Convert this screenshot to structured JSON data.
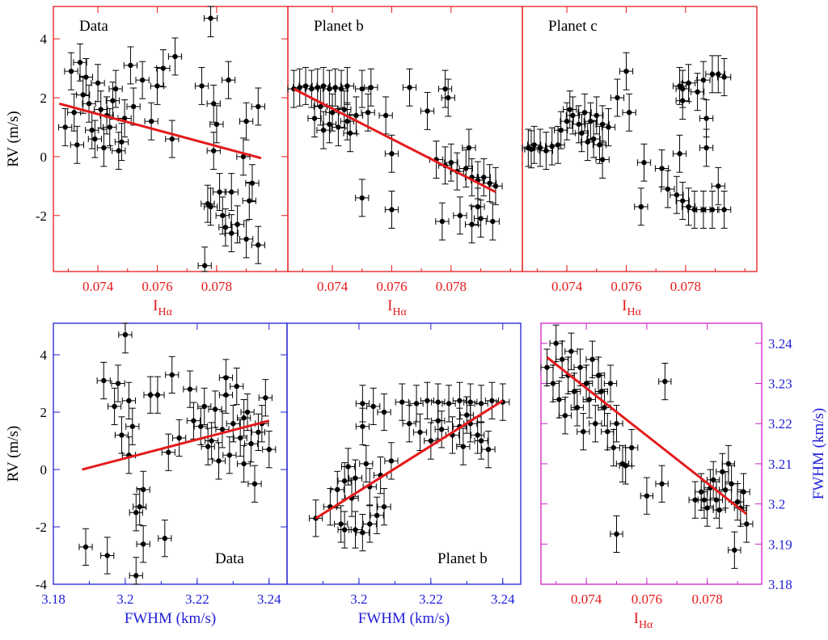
{
  "colors": {
    "red": "#e41a1c",
    "blue": "#1f1fd6",
    "magenta": "#cc22cc",
    "fit": "#e41a1c",
    "points": "#000000"
  },
  "chart_data": [
    {
      "id": "top-data",
      "type": "scatter",
      "panel_label": "Data",
      "frame_color": "red",
      "xlabel": "I",
      "xlabel_sub": "Hα",
      "xlabel_color": "red",
      "ylabel": "RV (m/s)",
      "xlim": [
        0.0725,
        0.0804
      ],
      "ylim": [
        -3.9,
        5.1
      ],
      "xticks": [
        "0.074",
        "0.076",
        "0.078"
      ],
      "yticks": [
        "-2",
        "0",
        "2",
        "4"
      ],
      "fit": [
        [
          0.0727,
          1.8
        ],
        [
          0.0795,
          -0.05
        ]
      ],
      "points": [
        [
          0.0732,
          1.5
        ],
        [
          0.0735,
          2.1
        ],
        [
          0.0738,
          0.9
        ],
        [
          0.0741,
          1.6
        ],
        [
          0.0733,
          0.4
        ],
        [
          0.0746,
          2.3
        ],
        [
          0.0749,
          1.3
        ],
        [
          0.0729,
          1.0
        ],
        [
          0.0736,
          2.7
        ],
        [
          0.0742,
          0.3
        ],
        [
          0.0745,
          1.9
        ],
        [
          0.0739,
          0.6
        ],
        [
          0.0734,
          3.2
        ],
        [
          0.0751,
          3.1
        ],
        [
          0.0744,
          1.0
        ],
        [
          0.0737,
          1.8
        ],
        [
          0.074,
          2.5
        ],
        [
          0.0748,
          0.5
        ],
        [
          0.0731,
          2.9
        ],
        [
          0.0743,
          1.4
        ],
        [
          0.0747,
          0.2
        ],
        [
          0.0752,
          1.7
        ],
        [
          0.0755,
          2.6
        ],
        [
          0.0758,
          1.2
        ],
        [
          0.0762,
          3.0
        ],
        [
          0.0766,
          3.4
        ],
        [
          0.076,
          2.4
        ],
        [
          0.0765,
          0.6
        ],
        [
          0.0775,
          2.4
        ],
        [
          0.0784,
          2.6
        ],
        [
          0.0778,
          4.7
        ],
        [
          0.0779,
          1.8
        ],
        [
          0.078,
          1.1
        ],
        [
          0.0779,
          0.2
        ],
        [
          0.0777,
          -1.6
        ],
        [
          0.0778,
          -1.7
        ],
        [
          0.0781,
          -1.2
        ],
        [
          0.0785,
          -1.2
        ],
        [
          0.0782,
          -2.0
        ],
        [
          0.0783,
          -2.4
        ],
        [
          0.0785,
          -2.6
        ],
        [
          0.0787,
          -2.3
        ],
        [
          0.079,
          -2.8
        ],
        [
          0.0792,
          -0.9
        ],
        [
          0.0794,
          -3.0
        ],
        [
          0.079,
          1.2
        ],
        [
          0.0776,
          -3.7
        ],
        [
          0.0789,
          0.0
        ],
        [
          0.0794,
          1.7
        ],
        [
          0.0791,
          -1.5
        ]
      ]
    },
    {
      "id": "top-planet-b",
      "type": "scatter",
      "panel_label": "Planet b",
      "frame_color": "red",
      "xlabel": "I",
      "xlabel_sub": "Hα",
      "xlabel_color": "red",
      "ylabel": "",
      "xlim": [
        0.0725,
        0.0804
      ],
      "ylim": [
        -3.9,
        5.1
      ],
      "xticks": [
        "0.074",
        "0.076",
        "0.078"
      ],
      "yticks": [],
      "fit": [
        [
          0.0727,
          2.3
        ],
        [
          0.0795,
          -1.2
        ]
      ],
      "points": [
        [
          0.0727,
          2.3
        ],
        [
          0.0729,
          2.35
        ],
        [
          0.0731,
          2.4
        ],
        [
          0.0733,
          2.3
        ],
        [
          0.0735,
          2.35
        ],
        [
          0.0737,
          2.4
        ],
        [
          0.0739,
          2.3
        ],
        [
          0.0741,
          2.35
        ],
        [
          0.0743,
          2.3
        ],
        [
          0.0745,
          2.4
        ],
        [
          0.075,
          2.3
        ],
        [
          0.0753,
          2.35
        ],
        [
          0.0766,
          2.35
        ],
        [
          0.0778,
          2.3
        ],
        [
          0.0779,
          2.0
        ],
        [
          0.0734,
          1.3
        ],
        [
          0.0737,
          0.9
        ],
        [
          0.074,
          1.5
        ],
        [
          0.0742,
          1.0
        ],
        [
          0.0744,
          1.6
        ],
        [
          0.0746,
          0.8
        ],
        [
          0.0748,
          1.4
        ],
        [
          0.0736,
          1.7
        ],
        [
          0.0739,
          1.1
        ],
        [
          0.0745,
          1.2
        ],
        [
          0.0752,
          1.5
        ],
        [
          0.0758,
          1.4
        ],
        [
          0.0772,
          1.55
        ],
        [
          0.076,
          0.1
        ],
        [
          0.075,
          -1.4
        ],
        [
          0.076,
          -1.8
        ],
        [
          0.0775,
          -0.1
        ],
        [
          0.0778,
          -0.3
        ],
        [
          0.078,
          -0.2
        ],
        [
          0.0782,
          -0.5
        ],
        [
          0.0785,
          -0.4
        ],
        [
          0.0787,
          -0.7
        ],
        [
          0.0789,
          -0.8
        ],
        [
          0.0791,
          -0.7
        ],
        [
          0.0793,
          -0.9
        ],
        [
          0.0786,
          0.3
        ],
        [
          0.0789,
          -1.7
        ],
        [
          0.0777,
          -2.2
        ],
        [
          0.0783,
          -2.0
        ],
        [
          0.0787,
          -2.3
        ],
        [
          0.079,
          -2.1
        ],
        [
          0.0794,
          -2.2
        ],
        [
          0.0795,
          -1.0
        ]
      ]
    },
    {
      "id": "top-planet-c",
      "type": "scatter",
      "panel_label": "Planet c",
      "frame_color": "red",
      "xlabel": "I",
      "xlabel_sub": "Hα",
      "xlabel_color": "red",
      "ylabel": "",
      "xlim": [
        0.0725,
        0.0804
      ],
      "ylim": [
        -3.9,
        5.1
      ],
      "xticks": [
        "0.074",
        "0.076",
        "0.078"
      ],
      "yticks": [],
      "fit": null,
      "points": [
        [
          0.0727,
          0.3
        ],
        [
          0.0729,
          0.4
        ],
        [
          0.0731,
          0.3
        ],
        [
          0.0733,
          0.2
        ],
        [
          0.0735,
          0.35
        ],
        [
          0.0728,
          0.25
        ],
        [
          0.0737,
          0.4
        ],
        [
          0.074,
          1.2
        ],
        [
          0.0742,
          1.4
        ],
        [
          0.0744,
          1.1
        ],
        [
          0.0746,
          1.5
        ],
        [
          0.0748,
          1.2
        ],
        [
          0.0738,
          0.9
        ],
        [
          0.0741,
          1.6
        ],
        [
          0.0745,
          0.8
        ],
        [
          0.075,
          1.4
        ],
        [
          0.0752,
          1.1
        ],
        [
          0.0754,
          1.0
        ],
        [
          0.0747,
          0.5
        ],
        [
          0.0749,
          0.6
        ],
        [
          0.0751,
          0.4
        ],
        [
          0.0757,
          2.0
        ],
        [
          0.076,
          2.9
        ],
        [
          0.0761,
          1.5
        ],
        [
          0.0752,
          -0.1
        ],
        [
          0.0766,
          -0.2
        ],
        [
          0.0772,
          -0.4
        ],
        [
          0.0774,
          -1.1
        ],
        [
          0.0777,
          -1.3
        ],
        [
          0.0779,
          -1.5
        ],
        [
          0.0781,
          -1.7
        ],
        [
          0.0783,
          -1.8
        ],
        [
          0.0786,
          -1.8
        ],
        [
          0.0789,
          -1.8
        ],
        [
          0.0793,
          -1.8
        ],
        [
          0.0791,
          -1.0
        ],
        [
          0.0765,
          -1.7
        ],
        [
          0.0778,
          0.1
        ],
        [
          0.0787,
          0.3
        ],
        [
          0.0778,
          2.4
        ],
        [
          0.0779,
          2.3
        ],
        [
          0.0781,
          2.5
        ],
        [
          0.0784,
          2.2
        ],
        [
          0.0786,
          2.6
        ],
        [
          0.0789,
          2.8
        ],
        [
          0.0791,
          2.8
        ],
        [
          0.0793,
          2.7
        ],
        [
          0.0779,
          1.9
        ],
        [
          0.0787,
          1.3
        ]
      ]
    },
    {
      "id": "bottom-data",
      "type": "scatter",
      "panel_label": "Data",
      "frame_color": "blue",
      "xlabel": "FWHM (km/s)",
      "xlabel_sub": "",
      "xlabel_color": "blue",
      "ylabel": "RV (m/s)",
      "xlim": [
        3.18,
        3.245
      ],
      "ylim": [
        -4.0,
        5.1
      ],
      "xticks": [
        "3.18",
        "3.2",
        "3.22",
        "3.24"
      ],
      "yticks": [
        "-4",
        "-2",
        "0",
        "2",
        "4"
      ],
      "fit": [
        [
          3.188,
          0.0
        ],
        [
          3.24,
          1.7
        ]
      ],
      "points": [
        [
          3.189,
          -2.7
        ],
        [
          3.194,
          3.1
        ],
        [
          3.195,
          -3.0
        ],
        [
          3.197,
          2.2
        ],
        [
          3.198,
          3.0
        ],
        [
          3.199,
          1.2
        ],
        [
          3.2,
          4.7
        ],
        [
          3.201,
          2.4
        ],
        [
          3.202,
          1.5
        ],
        [
          3.203,
          -1.5
        ],
        [
          3.204,
          -1.3
        ],
        [
          3.205,
          -0.7
        ],
        [
          3.201,
          0.5
        ],
        [
          3.203,
          -3.7
        ],
        [
          3.205,
          -2.6
        ],
        [
          3.207,
          2.6
        ],
        [
          3.209,
          2.6
        ],
        [
          3.211,
          -2.4
        ],
        [
          3.213,
          3.3
        ],
        [
          3.215,
          1.1
        ],
        [
          3.218,
          2.8
        ],
        [
          3.221,
          1.5
        ],
        [
          3.223,
          0.8
        ],
        [
          3.225,
          2.1
        ],
        [
          3.227,
          1.4
        ],
        [
          3.229,
          0.5
        ],
        [
          3.231,
          2.9
        ],
        [
          3.233,
          1.8
        ],
        [
          3.235,
          0.9
        ],
        [
          3.237,
          1.3
        ],
        [
          3.239,
          2.5
        ],
        [
          3.222,
          2.2
        ],
        [
          3.224,
          1.0
        ],
        [
          3.226,
          0.3
        ],
        [
          3.228,
          2.6
        ],
        [
          3.23,
          1.6
        ],
        [
          3.232,
          1.1
        ],
        [
          3.234,
          2.0
        ],
        [
          3.236,
          -0.5
        ],
        [
          3.238,
          1.6
        ],
        [
          3.24,
          0.7
        ],
        [
          3.228,
          3.2
        ],
        [
          3.212,
          0.6
        ],
        [
          3.219,
          1.7
        ],
        [
          3.233,
          0.2
        ]
      ]
    },
    {
      "id": "bottom-planet-b",
      "type": "scatter",
      "panel_label": "Planet b",
      "frame_color": "blue",
      "xlabel": "FWHM (km/s)",
      "xlabel_sub": "",
      "xlabel_color": "blue",
      "ylabel": "",
      "xlim": [
        3.18,
        3.245
      ],
      "ylim": [
        -4.0,
        5.1
      ],
      "xticks": [
        "3.2",
        "3.22",
        "3.24"
      ],
      "yticks": [],
      "fit": [
        [
          3.188,
          -1.7
        ],
        [
          3.24,
          2.4
        ]
      ],
      "points": [
        [
          3.188,
          -1.7
        ],
        [
          3.192,
          -1.3
        ],
        [
          3.194,
          -0.7
        ],
        [
          3.196,
          -0.4
        ],
        [
          3.198,
          -1.0
        ],
        [
          3.199,
          -2.1
        ],
        [
          3.201,
          -2.2
        ],
        [
          3.203,
          -1.9
        ],
        [
          3.205,
          -1.6
        ],
        [
          3.195,
          -1.9
        ],
        [
          3.197,
          0.1
        ],
        [
          3.199,
          -0.3
        ],
        [
          3.202,
          0.2
        ],
        [
          3.203,
          -0.6
        ],
        [
          3.206,
          -0.2
        ],
        [
          3.209,
          0.3
        ],
        [
          3.201,
          2.3
        ],
        [
          3.204,
          2.2
        ],
        [
          3.207,
          2.0
        ],
        [
          3.212,
          2.35
        ],
        [
          3.216,
          2.3
        ],
        [
          3.219,
          2.4
        ],
        [
          3.222,
          2.35
        ],
        [
          3.225,
          2.3
        ],
        [
          3.228,
          2.4
        ],
        [
          3.231,
          2.35
        ],
        [
          3.234,
          2.3
        ],
        [
          3.237,
          2.4
        ],
        [
          3.24,
          2.35
        ],
        [
          3.22,
          1.0
        ],
        [
          3.223,
          1.4
        ],
        [
          3.226,
          1.2
        ],
        [
          3.229,
          0.8
        ],
        [
          3.231,
          1.6
        ],
        [
          3.234,
          1.0
        ],
        [
          3.236,
          0.7
        ],
        [
          3.214,
          1.6
        ],
        [
          3.217,
          1.3
        ],
        [
          3.222,
          1.7
        ],
        [
          3.228,
          1.5
        ],
        [
          3.23,
          1.9
        ],
        [
          3.233,
          1.2
        ],
        [
          3.201,
          1.5
        ],
        [
          3.196,
          -2.1
        ],
        [
          3.207,
          -1.3
        ]
      ]
    },
    {
      "id": "bottom-right",
      "type": "scatter",
      "panel_label": "",
      "frame_color": "magenta",
      "xlabel": "I",
      "xlabel_sub": "Hα",
      "xlabel_color": "red",
      "ylabel": "FWHM (km/s)",
      "ylabel_side": "right",
      "ylabel_color": "blue",
      "xlim": [
        0.0725,
        0.0798
      ],
      "ylim": [
        3.18,
        3.245
      ],
      "xticks": [
        "0.074",
        "0.076",
        "0.078"
      ],
      "yticks": [
        "3.18",
        "3.19",
        "3.2",
        "3.21",
        "3.22",
        "3.23",
        "3.24"
      ],
      "fit": [
        [
          0.0727,
          3.2365
        ],
        [
          0.0793,
          3.1975
        ]
      ],
      "points": [
        [
          0.0727,
          3.234
        ],
        [
          0.0729,
          3.23
        ],
        [
          0.073,
          3.24
        ],
        [
          0.0731,
          3.226
        ],
        [
          0.0732,
          3.236
        ],
        [
          0.0733,
          3.222
        ],
        [
          0.0734,
          3.232
        ],
        [
          0.0735,
          3.238
        ],
        [
          0.0736,
          3.228
        ],
        [
          0.0737,
          3.224
        ],
        [
          0.0738,
          3.234
        ],
        [
          0.0739,
          3.218
        ],
        [
          0.074,
          3.23
        ],
        [
          0.0741,
          3.226
        ],
        [
          0.0742,
          3.236
        ],
        [
          0.0743,
          3.22
        ],
        [
          0.0744,
          3.232
        ],
        [
          0.0745,
          3.228
        ],
        [
          0.0746,
          3.224
        ],
        [
          0.0747,
          3.218
        ],
        [
          0.0748,
          3.23
        ],
        [
          0.0749,
          3.214
        ],
        [
          0.075,
          3.22
        ],
        [
          0.0752,
          3.21
        ],
        [
          0.0753,
          3.2095
        ],
        [
          0.0755,
          3.214
        ],
        [
          0.076,
          3.202
        ],
        [
          0.0765,
          3.205
        ],
        [
          0.0766,
          3.2305
        ],
        [
          0.075,
          3.1925
        ],
        [
          0.0776,
          3.201
        ],
        [
          0.0778,
          3.203
        ],
        [
          0.078,
          3.199
        ],
        [
          0.0781,
          3.204
        ],
        [
          0.0782,
          3.206
        ],
        [
          0.0783,
          3.201
        ],
        [
          0.0784,
          3.1985
        ],
        [
          0.0785,
          3.208
        ],
        [
          0.0786,
          3.2035
        ],
        [
          0.0788,
          3.205
        ],
        [
          0.0789,
          3.1885
        ],
        [
          0.079,
          3.2005
        ],
        [
          0.0791,
          3.199
        ],
        [
          0.0792,
          3.203
        ],
        [
          0.0793,
          3.195
        ],
        [
          0.0779,
          3.201
        ],
        [
          0.0787,
          3.21
        ]
      ]
    }
  ]
}
